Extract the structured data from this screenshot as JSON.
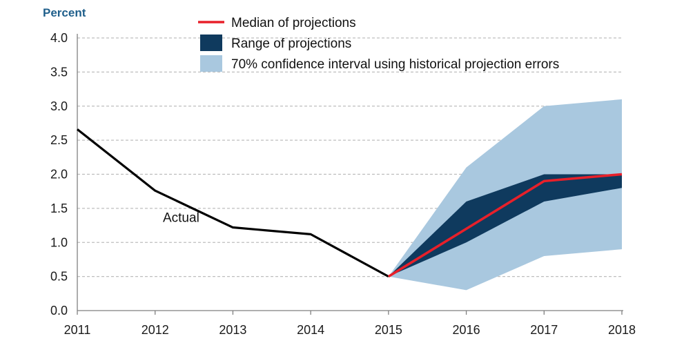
{
  "chart_data": {
    "type": "line",
    "title": "",
    "ylabel": "Percent",
    "xlabel": "",
    "ylim": [
      0,
      4
    ],
    "yticks": [
      "0.0",
      "0.5",
      "1.0",
      "1.5",
      "2.0",
      "2.5",
      "3.0",
      "3.5",
      "4.0"
    ],
    "yticks_values": [
      0,
      0.5,
      1,
      1.5,
      2,
      2.5,
      3,
      3.5,
      4
    ],
    "x": [
      "2011",
      "2012",
      "2013",
      "2014",
      "2015",
      "2016",
      "2017",
      "2018"
    ],
    "xlim": [
      2011,
      2018
    ],
    "grid": true,
    "legend_position": "top",
    "series": [
      {
        "name": "Actual",
        "kind": "line",
        "color": "#000000",
        "x": [
          2011,
          2012,
          2013,
          2014,
          2015
        ],
        "values": [
          2.66,
          1.76,
          1.22,
          1.12,
          0.5
        ]
      },
      {
        "name": "Median of projections",
        "kind": "line",
        "color": "#e8202a",
        "x": [
          2015,
          2016,
          2017,
          2018
        ],
        "values": [
          0.5,
          1.2,
          1.9,
          2.0
        ]
      },
      {
        "name": "Range of projections",
        "kind": "band",
        "color": "#0f3a5e",
        "x": [
          2015,
          2016,
          2017,
          2018
        ],
        "lower": [
          0.5,
          1.0,
          1.6,
          1.8
        ],
        "upper": [
          0.5,
          1.6,
          2.0,
          2.0
        ]
      },
      {
        "name": "70% confidence interval using historical projection errors",
        "kind": "band",
        "color": "#a9c8df",
        "x": [
          2015,
          2016,
          2017,
          2018
        ],
        "lower": [
          0.5,
          0.3,
          0.8,
          0.9
        ],
        "upper": [
          0.5,
          2.1,
          3.0,
          3.1
        ]
      }
    ],
    "annotations": [
      {
        "text": "Actual",
        "x": 2012.1,
        "y": 1.3
      }
    ],
    "colors": {
      "ylabel": "#1f5f8b",
      "grid": "#bdbdbd",
      "axis": "#7f7f7f"
    }
  }
}
